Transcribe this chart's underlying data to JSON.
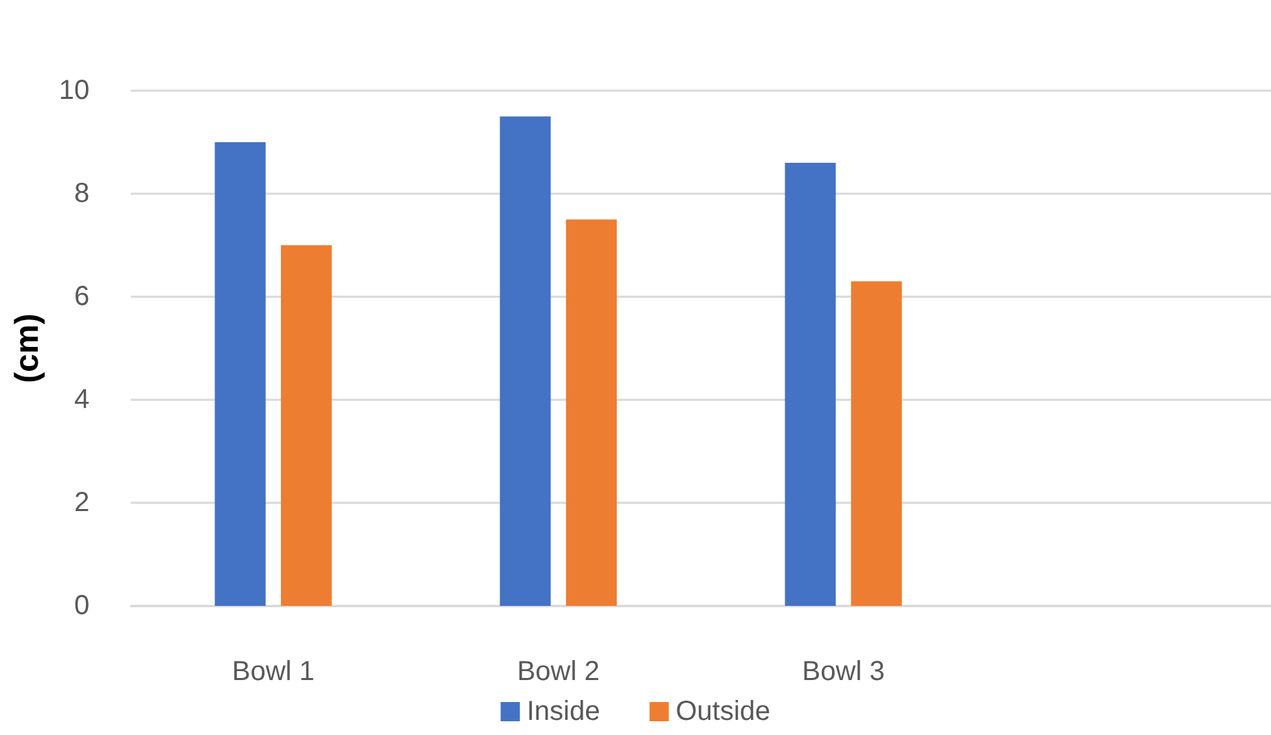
{
  "chart_data": {
    "type": "bar",
    "ylabel": "(cm)",
    "categories": [
      "Bowl 1",
      "Bowl 2",
      "Bowl 3",
      null
    ],
    "series": [
      {
        "name": "Inside",
        "color": "#4472c4",
        "values": [
          9,
          9.5,
          8.6,
          null
        ]
      },
      {
        "name": "Outside",
        "color": "#ed7d31",
        "values": [
          7,
          7.5,
          6.3,
          null
        ]
      }
    ],
    "ylim": [
      0,
      10
    ],
    "yticks": [
      0,
      2,
      4,
      6,
      8,
      10
    ],
    "grid": "y",
    "legend": "bottom"
  }
}
